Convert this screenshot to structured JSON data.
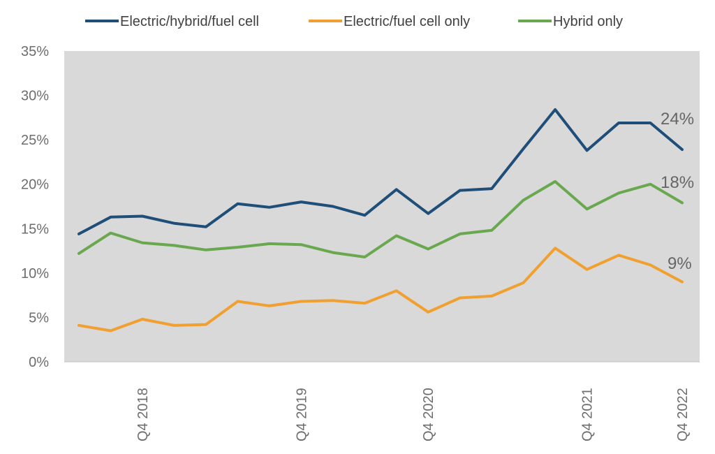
{
  "chart_data": {
    "type": "line",
    "title": "",
    "xlabel": "",
    "ylabel": "",
    "ylim": [
      0,
      35
    ],
    "y_ticks": [
      "0%",
      "5%",
      "10%",
      "15%",
      "20%",
      "25%",
      "30%",
      "35%"
    ],
    "x_tick_labels": [
      {
        "label": "Q4 2018",
        "index": 2
      },
      {
        "label": "Q4 2019",
        "index": 7
      },
      {
        "label": "Q4 2020",
        "index": 11
      },
      {
        "label": "Q4 2021",
        "index": 16
      },
      {
        "label": "Q4 2022",
        "index": 19
      }
    ],
    "grid": false,
    "legend": "top",
    "plot_background": "#d9d9d9",
    "series": [
      {
        "name": "Electric/hybrid/fuel cell",
        "color": "#1f4e79",
        "values": [
          14.4,
          16.3,
          16.4,
          15.6,
          15.2,
          17.8,
          17.4,
          18.0,
          17.5,
          16.5,
          19.4,
          16.7,
          19.3,
          19.5,
          24.0,
          28.4,
          23.8,
          26.9,
          26.9,
          23.9
        ],
        "end_label": "24%"
      },
      {
        "name": "Electric/fuel cell only",
        "color": "#f0a030",
        "values": [
          4.1,
          3.5,
          4.8,
          4.1,
          4.2,
          6.8,
          6.3,
          6.8,
          6.9,
          6.6,
          8.0,
          5.6,
          7.2,
          7.4,
          8.9,
          12.8,
          10.4,
          12.0,
          10.9,
          9.0
        ],
        "end_label": "9%"
      },
      {
        "name": "Hybrid only",
        "color": "#6aa84f",
        "values": [
          12.2,
          14.5,
          13.4,
          13.1,
          12.6,
          12.9,
          13.3,
          13.2,
          12.3,
          11.8,
          14.2,
          12.7,
          14.4,
          14.8,
          18.2,
          20.3,
          17.2,
          19.0,
          20.0,
          17.9
        ],
        "end_label": "18%"
      }
    ]
  }
}
